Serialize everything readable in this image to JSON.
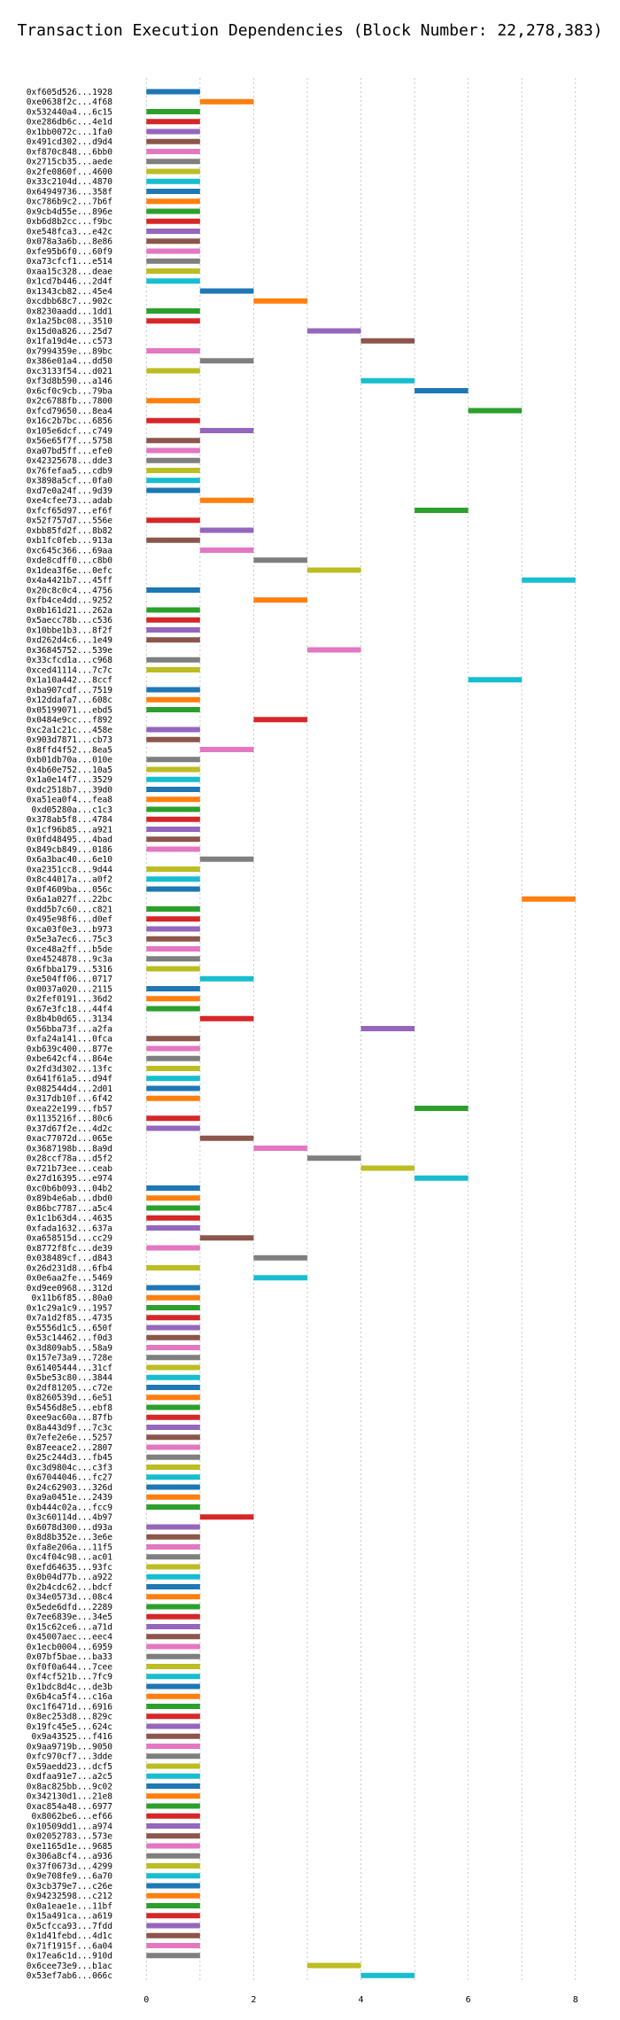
{
  "chart_data": {
    "type": "bar",
    "orientation": "horizontal",
    "title": "Transaction Execution Dependencies (Block Number: 22,278,383)",
    "xlabel": "",
    "ylabel": "",
    "xlim": [
      -0.5,
      8.5
    ],
    "xticks": [
      0,
      2,
      4,
      6,
      8
    ],
    "grid": true,
    "palette": [
      "#1f77b4",
      "#ff7f0e",
      "#2ca02c",
      "#d62728",
      "#9467bd",
      "#8c564b",
      "#e377c2",
      "#7f7f7f",
      "#bcbd22",
      "#17becf"
    ],
    "bar_width": 1,
    "transactions": [
      {
        "label": "0xf605d526...1928",
        "start": 0
      },
      {
        "label": "0xe0638f2c...4f68",
        "start": 1
      },
      {
        "label": "0x532440a4...6c15",
        "start": 0
      },
      {
        "label": "0xe286db6c...4e1d",
        "start": 0
      },
      {
        "label": "0x1bb0072c...1fa0",
        "start": 0
      },
      {
        "label": "0x491cd302...d9d4",
        "start": 0
      },
      {
        "label": "0xf870c848...6bb0",
        "start": 0
      },
      {
        "label": "0x2715cb35...aede",
        "start": 0
      },
      {
        "label": "0x2fe0860f...4600",
        "start": 0
      },
      {
        "label": "0x33c2104d...4870",
        "start": 0
      },
      {
        "label": "0x64949736...358f",
        "start": 0
      },
      {
        "label": "0xc786b9c2...7b6f",
        "start": 0
      },
      {
        "label": "0x9cb4d55e...896e",
        "start": 0
      },
      {
        "label": "0xb6d8b2cc...f9bc",
        "start": 0
      },
      {
        "label": "0xe548fca3...e42c",
        "start": 0
      },
      {
        "label": "0x078a3a6b...8e86",
        "start": 0
      },
      {
        "label": "0xfe95b6f0...60f9",
        "start": 0
      },
      {
        "label": "0xa73cfcf1...e514",
        "start": 0
      },
      {
        "label": "0xaa15c328...deae",
        "start": 0
      },
      {
        "label": "0x1cd7b446...2d4f",
        "start": 0
      },
      {
        "label": "0x1343cb82...45e4",
        "start": 1
      },
      {
        "label": "0xcdbb68c7...902c",
        "start": 2
      },
      {
        "label": "0x8230aadd...1dd1",
        "start": 0
      },
      {
        "label": "0x1a25bc08...3510",
        "start": 0
      },
      {
        "label": "0x15d0a826...25d7",
        "start": 3
      },
      {
        "label": "0x1fa19d4e...c573",
        "start": 4
      },
      {
        "label": "0x7994359e...89bc",
        "start": 0
      },
      {
        "label": "0x386e01a4...dd50",
        "start": 1
      },
      {
        "label": "0xc3133f54...d021",
        "start": 0
      },
      {
        "label": "0xf3d8b590...a146",
        "start": 4
      },
      {
        "label": "0x6cf0c9cb...79ba",
        "start": 5
      },
      {
        "label": "0x2c6788fb...7800",
        "start": 0
      },
      {
        "label": "0xfcd79650...8ea4",
        "start": 6
      },
      {
        "label": "0x16c2b7bc...6856",
        "start": 0
      },
      {
        "label": "0x105e6dcf...c749",
        "start": 1
      },
      {
        "label": "0x56e65f7f...5758",
        "start": 0
      },
      {
        "label": "0xa07bd5ff...efe0",
        "start": 0
      },
      {
        "label": "0x42325678...dde3",
        "start": 0
      },
      {
        "label": "0x76fefaa5...cdb9",
        "start": 0
      },
      {
        "label": "0x3898a5cf...0fa0",
        "start": 0
      },
      {
        "label": "0xd7e0a24f...9d39",
        "start": 0
      },
      {
        "label": "0xe4cfee73...adab",
        "start": 1
      },
      {
        "label": "0xfcf65d97...ef6f",
        "start": 5
      },
      {
        "label": "0x52f757d7...556e",
        "start": 0
      },
      {
        "label": "0xbb85fd2f...8b82",
        "start": 1
      },
      {
        "label": "0xb1fc0feb...913a",
        "start": 0
      },
      {
        "label": "0xc645c366...69aa",
        "start": 1
      },
      {
        "label": "0xde8cdff0...c8b0",
        "start": 2
      },
      {
        "label": "0x1dea3f6e...0efc",
        "start": 3
      },
      {
        "label": "0x4a4421b7...45ff",
        "start": 7
      },
      {
        "label": "0x20c8c0c4...4756",
        "start": 0
      },
      {
        "label": "0xfb4ce4dd...9252",
        "start": 2
      },
      {
        "label": "0x0b161d21...262a",
        "start": 0
      },
      {
        "label": "0x5aecc78b...c536",
        "start": 0
      },
      {
        "label": "0x10bbe1b3...8f2f",
        "start": 0
      },
      {
        "label": "0xd262d4c6...1e49",
        "start": 0
      },
      {
        "label": "0x36845752...539e",
        "start": 3
      },
      {
        "label": "0x33cfcd1a...c968",
        "start": 0
      },
      {
        "label": "0xced41114...7c7c",
        "start": 0
      },
      {
        "label": "0x1a10a442...8ccf",
        "start": 6
      },
      {
        "label": "0xba907cdf...7519",
        "start": 0
      },
      {
        "label": "0x12ddafa7...608c",
        "start": 0
      },
      {
        "label": "0x05199071...ebd5",
        "start": 0
      },
      {
        "label": "0x0484e9cc...f892",
        "start": 2
      },
      {
        "label": "0xc2a1c21c...458e",
        "start": 0
      },
      {
        "label": "0x903d7871...cb73",
        "start": 0
      },
      {
        "label": "0x8ffd4f52...8ea5",
        "start": 1
      },
      {
        "label": "0xb01db70a...010e",
        "start": 0
      },
      {
        "label": "0x4b60e752...10a5",
        "start": 0
      },
      {
        "label": "0x1a0e14f7...3529",
        "start": 0
      },
      {
        "label": "0xdc2518b7...39d0",
        "start": 0
      },
      {
        "label": "0xa51ea0f4...fea8",
        "start": 0
      },
      {
        "label": "0xd05280a...c1c3",
        "start": 0
      },
      {
        "label": "0x378ab5f8...4784",
        "start": 0
      },
      {
        "label": "0x1cf96b85...a921",
        "start": 0
      },
      {
        "label": "0x0fd48495...4bad",
        "start": 0
      },
      {
        "label": "0x849cb849...0186",
        "start": 0
      },
      {
        "label": "0x6a3bac40...6e10",
        "start": 1
      },
      {
        "label": "0xa2351cc8...9d44",
        "start": 0
      },
      {
        "label": "0x8c44017a...a0f2",
        "start": 0
      },
      {
        "label": "0x0f4609ba...056c",
        "start": 0
      },
      {
        "label": "0x6a1a027f...22bc",
        "start": 7
      },
      {
        "label": "0xdd5b7c60...c821",
        "start": 0
      },
      {
        "label": "0x495e98f6...d0ef",
        "start": 0
      },
      {
        "label": "0xca03f0e3...b973",
        "start": 0
      },
      {
        "label": "0x5e3a7ec6...75c3",
        "start": 0
      },
      {
        "label": "0xce48a2ff...b5de",
        "start": 0
      },
      {
        "label": "0xe4524878...9c3a",
        "start": 0
      },
      {
        "label": "0x6fbba179...5316",
        "start": 0
      },
      {
        "label": "0xe504ff06...0717",
        "start": 1
      },
      {
        "label": "0x0037a020...2115",
        "start": 0
      },
      {
        "label": "0x2fef0191...36d2",
        "start": 0
      },
      {
        "label": "0x67e3fc18...44f4",
        "start": 0
      },
      {
        "label": "0x8b4b0d65...3134",
        "start": 1
      },
      {
        "label": "0x56bba73f...a2fa",
        "start": 4
      },
      {
        "label": "0xfa24a141...0fca",
        "start": 0
      },
      {
        "label": "0xb639c400...877e",
        "start": 0
      },
      {
        "label": "0xbe642cf4...864e",
        "start": 0
      },
      {
        "label": "0x2fd3d302...13fc",
        "start": 0
      },
      {
        "label": "0x641f61a5...d94f",
        "start": 0
      },
      {
        "label": "0x082544d4...2d01",
        "start": 0
      },
      {
        "label": "0x317db10f...6f42",
        "start": 0
      },
      {
        "label": "0xea22e199...fb57",
        "start": 5
      },
      {
        "label": "0x1135216f...80c6",
        "start": 0
      },
      {
        "label": "0x37d67f2e...4d2c",
        "start": 0
      },
      {
        "label": "0xac77072d...065e",
        "start": 1
      },
      {
        "label": "0x3687198b...8a9d",
        "start": 2
      },
      {
        "label": "0x28ccf78a...d5f2",
        "start": 3
      },
      {
        "label": "0x721b73ee...ceab",
        "start": 4
      },
      {
        "label": "0x27d16395...e974",
        "start": 5
      },
      {
        "label": "0xc0b6b093...04b2",
        "start": 0
      },
      {
        "label": "0x89b4e6ab...dbd0",
        "start": 0
      },
      {
        "label": "0x86bc7787...a5c4",
        "start": 0
      },
      {
        "label": "0x1c1b63d4...4635",
        "start": 0
      },
      {
        "label": "0xfada1632...637a",
        "start": 0
      },
      {
        "label": "0xa658515d...cc29",
        "start": 1
      },
      {
        "label": "0x8772f8fc...de39",
        "start": 0
      },
      {
        "label": "0x038489cf...d843",
        "start": 2
      },
      {
        "label": "0x26d231d8...6fb4",
        "start": 0
      },
      {
        "label": "0x0e6aa2fe...5469",
        "start": 2
      },
      {
        "label": "0xd9ee0968...312d",
        "start": 0
      },
      {
        "label": "0x11b6f85...80a0",
        "start": 0
      },
      {
        "label": "0x1c29a1c9...1957",
        "start": 0
      },
      {
        "label": "0x7a1d2f85...4735",
        "start": 0
      },
      {
        "label": "0x5556d1c5...650f",
        "start": 0
      },
      {
        "label": "0x53c14462...f0d3",
        "start": 0
      },
      {
        "label": "0x3d809ab5...58a9",
        "start": 0
      },
      {
        "label": "0x157e73a9...728e",
        "start": 0
      },
      {
        "label": "0x61405444...31cf",
        "start": 0
      },
      {
        "label": "0x5be53c80...3844",
        "start": 0
      },
      {
        "label": "0x2df81205...c72e",
        "start": 0
      },
      {
        "label": "0x8260539d...6e51",
        "start": 0
      },
      {
        "label": "0x5456d8e5...ebf8",
        "start": 0
      },
      {
        "label": "0xee9ac60a...87fb",
        "start": 0
      },
      {
        "label": "0x8a443d9f...7c3c",
        "start": 0
      },
      {
        "label": "0x7efe2e6e...5257",
        "start": 0
      },
      {
        "label": "0x87eeace2...2807",
        "start": 0
      },
      {
        "label": "0x25c244d3...fb45",
        "start": 0
      },
      {
        "label": "0xc3d9804c...c3f3",
        "start": 0
      },
      {
        "label": "0x67044046...fc27",
        "start": 0
      },
      {
        "label": "0x24c62903...326d",
        "start": 0
      },
      {
        "label": "0xa9a0451e...2439",
        "start": 0
      },
      {
        "label": "0xb444c02a...fcc9",
        "start": 0
      },
      {
        "label": "0x3c60114d...4b97",
        "start": 1
      },
      {
        "label": "0x6078d300...d93a",
        "start": 0
      },
      {
        "label": "0x8d8b352e...3e6e",
        "start": 0
      },
      {
        "label": "0xfa8e206a...11f5",
        "start": 0
      },
      {
        "label": "0xc4f04c98...ac01",
        "start": 0
      },
      {
        "label": "0xefd64635...93fc",
        "start": 0
      },
      {
        "label": "0x0b04d77b...a922",
        "start": 0
      },
      {
        "label": "0x2b4cdc62...bdcf",
        "start": 0
      },
      {
        "label": "0x34e0573d...08c4",
        "start": 0
      },
      {
        "label": "0x5ede6dfd...2289",
        "start": 0
      },
      {
        "label": "0x7ee6839e...34e5",
        "start": 0
      },
      {
        "label": "0x15c62ce6...a71d",
        "start": 0
      },
      {
        "label": "0x45007aec...eec4",
        "start": 0
      },
      {
        "label": "0x1ecb0004...6959",
        "start": 0
      },
      {
        "label": "0x07bf5bae...ba33",
        "start": 0
      },
      {
        "label": "0xf0f0a644...7cee",
        "start": 0
      },
      {
        "label": "0xf4cf521b...7fc9",
        "start": 0
      },
      {
        "label": "0x1bdc8d4c...de3b",
        "start": 0
      },
      {
        "label": "0x6b4ca5f4...c16a",
        "start": 0
      },
      {
        "label": "0xc1f6471d...6916",
        "start": 0
      },
      {
        "label": "0x8ec253d8...829c",
        "start": 0
      },
      {
        "label": "0x19fc45e5...624c",
        "start": 0
      },
      {
        "label": "0x9a43525...f416",
        "start": 0
      },
      {
        "label": "0x9aa9719b...9050",
        "start": 0
      },
      {
        "label": "0xfc970cf7...3dde",
        "start": 0
      },
      {
        "label": "0x59aedd23...dcf5",
        "start": 0
      },
      {
        "label": "0xdfaa91e7...a2c5",
        "start": 0
      },
      {
        "label": "0x8ac825bb...9c02",
        "start": 0
      },
      {
        "label": "0x342130d1...21e8",
        "start": 0
      },
      {
        "label": "0xac854a48...6977",
        "start": 0
      },
      {
        "label": "0x8062be6...ef66",
        "start": 0
      },
      {
        "label": "0x10509dd1...a974",
        "start": 0
      },
      {
        "label": "0x02052783...573e",
        "start": 0
      },
      {
        "label": "0xe1165d1e...9685",
        "start": 0
      },
      {
        "label": "0x306a8cf4...a936",
        "start": 0
      },
      {
        "label": "0x37f0673d...4299",
        "start": 0
      },
      {
        "label": "0x9e708fe9...6a70",
        "start": 0
      },
      {
        "label": "0x3cb379e7...c26e",
        "start": 0
      },
      {
        "label": "0x94232598...c212",
        "start": 0
      },
      {
        "label": "0x0a1eae1e...11bf",
        "start": 0
      },
      {
        "label": "0x15a491ca...a619",
        "start": 0
      },
      {
        "label": "0x5cfcca93...7fdd",
        "start": 0
      },
      {
        "label": "0x1d41febd...4d1c",
        "start": 0
      },
      {
        "label": "0x71f1915f...6a04",
        "start": 0
      },
      {
        "label": "0x17ea6c1d...910d",
        "start": 0
      },
      {
        "label": "0x6cee73e9...b1ac",
        "start": 3
      },
      {
        "label": "0x53ef7ab6...066c",
        "start": 4
      }
    ]
  }
}
